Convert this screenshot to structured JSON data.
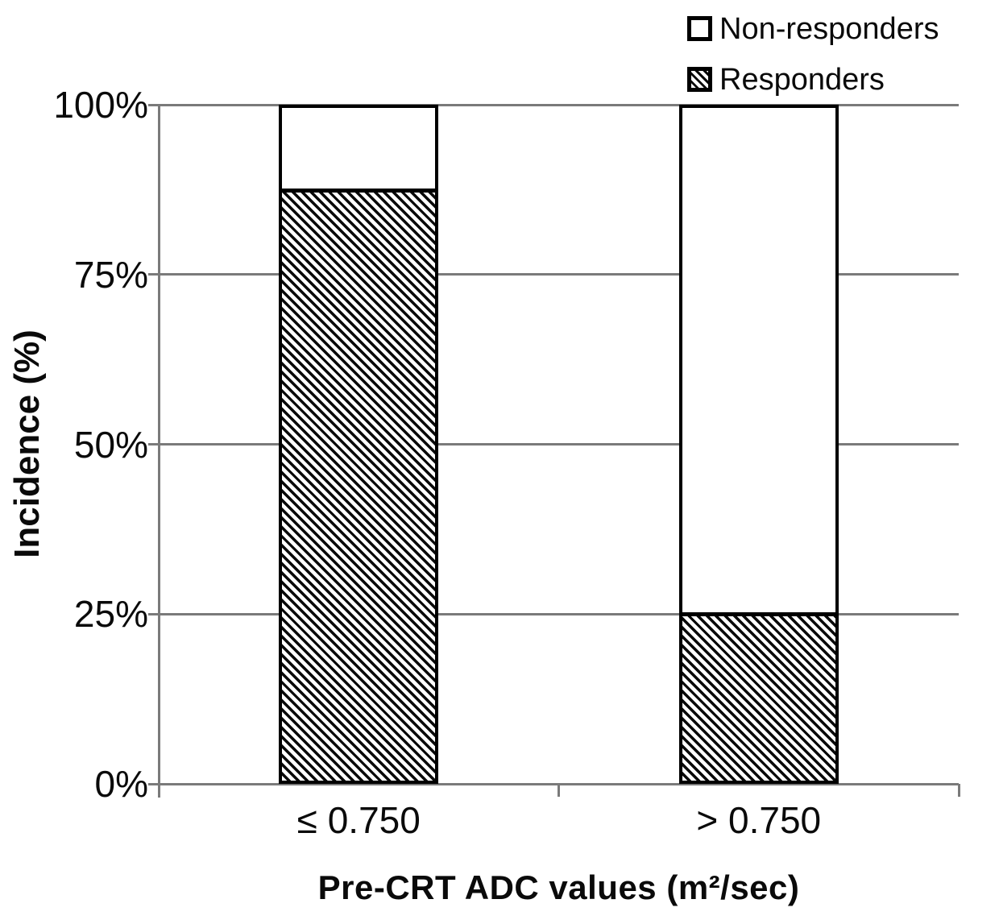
{
  "chart_data": {
    "type": "bar",
    "stacked": true,
    "title": "",
    "xlabel": "Pre-CRT ADC values (m²/sec)",
    "ylabel": "Incidence (%)",
    "categories": [
      "≤ 0.750",
      "> 0.750"
    ],
    "series": [
      {
        "name": "Responders",
        "values": [
          88,
          25
        ],
        "fill": "hatch"
      },
      {
        "name": "Non-responders",
        "values": [
          12,
          75
        ],
        "fill": "white"
      }
    ],
    "ylim": [
      0,
      100
    ],
    "yticks": [
      "0%",
      "25%",
      "50%",
      "75%",
      "100%"
    ],
    "grid": true,
    "legend_position": "top-right",
    "legend": [
      {
        "label": "Non-responders",
        "swatch": "white"
      },
      {
        "label": "Responders",
        "swatch": "hatch"
      }
    ],
    "colors": {
      "grid_and_axis": "#7a7a7a",
      "bar_border": "#000000",
      "hatch": "#0a0a0a",
      "background": "#ffffff",
      "text": "#0a0a0a"
    }
  }
}
